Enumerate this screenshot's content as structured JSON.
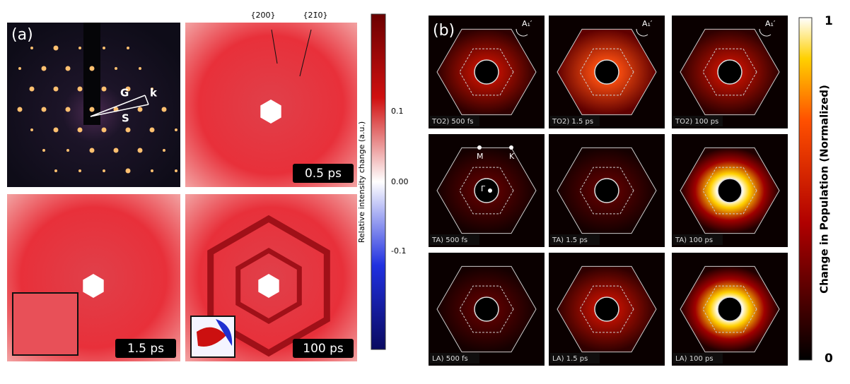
{
  "panel_a": {
    "label": "(a)",
    "vectors": [
      "G",
      "k",
      "S"
    ],
    "annotations": [
      "{200}",
      "{21̄0}"
    ],
    "timestamps": [
      "0.5 ps",
      "1.5 ps",
      "100 ps"
    ],
    "colorbar": {
      "label": "Relative intensity change (a.u.)",
      "ticks": [
        "0.1",
        "0.00",
        "-0.1"
      ]
    }
  },
  "panel_b": {
    "label": "(b)",
    "rows": [
      [
        "TO2) 500 fs",
        "TO2) 1.5 ps",
        "TO2) 100 ps"
      ],
      [
        "TA) 500 fs",
        "TA) 1.5 ps",
        "TA) 100 ps"
      ],
      [
        "LA) 500 fs",
        "LA) 1.5 ps",
        "LA) 100 ps"
      ]
    ],
    "corner_labels": [
      "A₁′",
      "A₁′",
      "A₁′"
    ],
    "points": [
      "M",
      "K",
      "Γ"
    ],
    "colorbar": {
      "label": "Change in Population (Normalized)",
      "max": "1",
      "min": "0"
    }
  }
}
